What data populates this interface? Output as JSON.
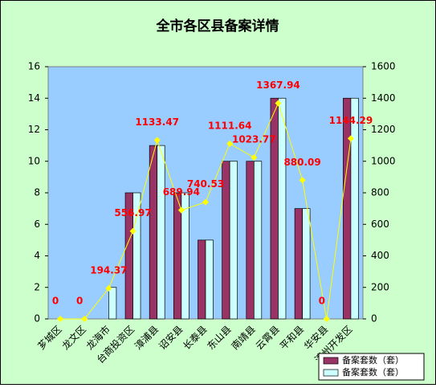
{
  "chart_data": {
    "type": "bar-line",
    "title": "全市各区县备案详情",
    "categories": [
      "芗城区",
      "龙文区",
      "龙海市",
      "台商投资区",
      "漳浦县",
      "诏安县",
      "长泰县",
      "东山县",
      "南靖县",
      "云霄县",
      "平和县",
      "华安县",
      "漳州开发区"
    ],
    "series": [
      {
        "name": "备案套数（套）",
        "color": "#993366",
        "type": "bar",
        "values": [
          0,
          0,
          0,
          8,
          11,
          8,
          5,
          10,
          10,
          14,
          7,
          0,
          14
        ]
      },
      {
        "name": "备案套数（套）",
        "color": "#ccffff",
        "type": "bar",
        "values": [
          0,
          0,
          2,
          8,
          11,
          8,
          5,
          10,
          10,
          14,
          7,
          0,
          14
        ]
      },
      {
        "color": "#ffff00",
        "type": "line",
        "axis": "y2",
        "label_color": "#ff0000",
        "values": [
          0,
          0,
          194.37,
          556.97,
          1133.47,
          689.94,
          740.53,
          1111.64,
          1023.77,
          1367.94,
          880.09,
          0,
          1144.29
        ]
      }
    ],
    "ylim": [
      0,
      16
    ],
    "yticks": [
      0,
      2,
      4,
      6,
      8,
      10,
      12,
      14,
      16
    ],
    "y2lim": [
      0,
      1600
    ],
    "y2ticks": [
      0,
      200,
      400,
      600,
      800,
      1000,
      1200,
      1400,
      1600
    ],
    "legend": "bottom-right"
  }
}
